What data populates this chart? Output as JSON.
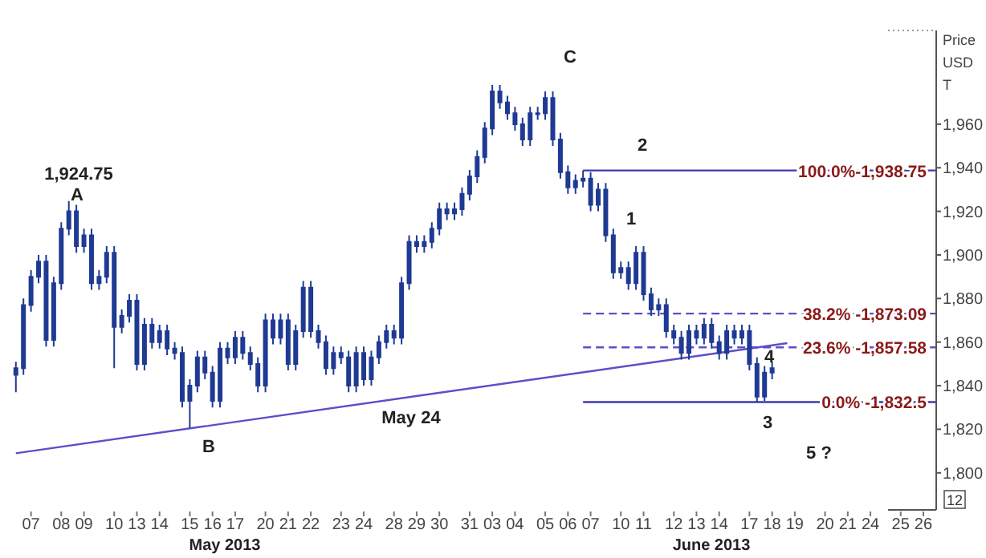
{
  "chart_data": {
    "type": "candlestick",
    "ylabel": "Price USD T",
    "grid": false,
    "categories": [
      null,
      null,
      "07",
      null,
      null,
      null,
      "08",
      null,
      null,
      "09",
      null,
      null,
      null,
      "10",
      null,
      null,
      "13",
      null,
      null,
      "14",
      null,
      null,
      null,
      "15",
      null,
      null,
      "16",
      null,
      null,
      "17",
      null,
      null,
      null,
      "20",
      null,
      null,
      "21",
      null,
      null,
      "22",
      null,
      null,
      null,
      "23",
      null,
      null,
      "24",
      null,
      null,
      null,
      "28",
      null,
      null,
      "29",
      null,
      null,
      "30",
      null,
      null,
      null,
      "31",
      null,
      null,
      "03",
      null,
      null,
      "04",
      null,
      null,
      null,
      "05",
      null,
      null,
      "06",
      null,
      null,
      "07",
      null,
      null,
      null,
      "10",
      null,
      null,
      "11",
      null,
      null,
      null,
      "12",
      null,
      null,
      "13",
      null,
      null,
      "14",
      null,
      null,
      null,
      "17",
      null,
      null,
      "18",
      null,
      null,
      "19",
      null,
      null,
      null,
      "20",
      null,
      null,
      "21",
      null,
      null,
      "24",
      null,
      null,
      null,
      "25",
      null,
      null,
      "26",
      null
    ],
    "ohlc": [
      [
        1845,
        1851,
        1837,
        1848
      ],
      [
        1848,
        1880,
        1845,
        1877
      ],
      [
        1877,
        1893,
        1874,
        1890
      ],
      [
        1890,
        1900,
        1887,
        1897
      ],
      [
        1897,
        1900,
        1858,
        1861
      ],
      [
        1861,
        1890,
        1858,
        1887
      ],
      [
        1887,
        1915,
        1884,
        1912
      ],
      [
        1912,
        1924.75,
        1909,
        1920
      ],
      [
        1920,
        1923,
        1901,
        1904
      ],
      [
        1904,
        1912,
        1901,
        1909
      ],
      [
        1909,
        1912,
        1884,
        1887
      ],
      [
        1887,
        1893,
        1884,
        1890
      ],
      [
        1890,
        1904,
        1887,
        1901
      ],
      [
        1901,
        1904,
        1848,
        1867
      ],
      [
        1867,
        1875,
        1864,
        1872
      ],
      [
        1872,
        1882,
        1869,
        1879
      ],
      [
        1879,
        1882,
        1847,
        1850
      ],
      [
        1850,
        1871,
        1847,
        1868
      ],
      [
        1868,
        1871,
        1857,
        1860
      ],
      [
        1860,
        1868,
        1857,
        1865
      ],
      [
        1865,
        1868,
        1854,
        1857
      ],
      [
        1857,
        1860,
        1852,
        1855
      ],
      [
        1855,
        1858,
        1830,
        1833
      ],
      [
        1833,
        1843,
        1820.5,
        1840
      ],
      [
        1840,
        1856,
        1837,
        1853
      ],
      [
        1853,
        1856,
        1843,
        1846
      ],
      [
        1846,
        1849,
        1830,
        1833
      ],
      [
        1833,
        1860,
        1830,
        1857
      ],
      [
        1857,
        1860,
        1850,
        1853
      ],
      [
        1853,
        1865,
        1850,
        1862
      ],
      [
        1862,
        1865,
        1852,
        1855
      ],
      [
        1855,
        1858,
        1847,
        1850
      ],
      [
        1850,
        1853,
        1837,
        1840
      ],
      [
        1840,
        1873,
        1837,
        1870
      ],
      [
        1870,
        1873,
        1859,
        1862
      ],
      [
        1862,
        1873,
        1859,
        1870
      ],
      [
        1870,
        1873,
        1847,
        1850
      ],
      [
        1850,
        1868,
        1847,
        1865
      ],
      [
        1865,
        1888,
        1862,
        1885
      ],
      [
        1885,
        1888,
        1862,
        1865
      ],
      [
        1865,
        1868,
        1857,
        1860
      ],
      [
        1860,
        1863,
        1845,
        1848
      ],
      [
        1848,
        1858,
        1845,
        1855
      ],
      [
        1855,
        1858,
        1850,
        1853
      ],
      [
        1853,
        1856,
        1837,
        1840
      ],
      [
        1840,
        1858,
        1837,
        1855
      ],
      [
        1855,
        1858,
        1840,
        1843
      ],
      [
        1843,
        1856,
        1840,
        1853
      ],
      [
        1853,
        1863,
        1850,
        1860
      ],
      [
        1860,
        1868,
        1857,
        1865
      ],
      [
        1865,
        1868,
        1859,
        1862
      ],
      [
        1862,
        1890,
        1859,
        1887
      ],
      [
        1887,
        1909,
        1884,
        1906
      ],
      [
        1906,
        1909,
        1901,
        1904
      ],
      [
        1904,
        1909,
        1901,
        1906
      ],
      [
        1906,
        1915,
        1903,
        1912
      ],
      [
        1912,
        1924,
        1909,
        1921
      ],
      [
        1921,
        1924,
        1916,
        1919
      ],
      [
        1919,
        1924,
        1916,
        1921
      ],
      [
        1921,
        1931,
        1918,
        1928
      ],
      [
        1928,
        1939,
        1925,
        1936
      ],
      [
        1936,
        1948,
        1933,
        1945
      ],
      [
        1945,
        1961,
        1942,
        1958
      ],
      [
        1958,
        1978,
        1955,
        1975
      ],
      [
        1975,
        1978,
        1967,
        1970
      ],
      [
        1970,
        1973,
        1962,
        1965
      ],
      [
        1965,
        1968,
        1957,
        1960
      ],
      [
        1960,
        1963,
        1950,
        1953
      ],
      [
        1953,
        1968,
        1950,
        1965
      ],
      [
        1965,
        1968,
        1962,
        1965
      ],
      [
        1965,
        1975,
        1962,
        1972
      ],
      [
        1972,
        1975,
        1950,
        1953
      ],
      [
        1953,
        1956,
        1935,
        1938
      ],
      [
        1938,
        1941,
        1928,
        1931
      ],
      [
        1931,
        1937,
        1928,
        1934
      ],
      [
        1934,
        1938.75,
        1931,
        1935
      ],
      [
        1935,
        1938,
        1920,
        1923
      ],
      [
        1923,
        1933,
        1920,
        1930
      ],
      [
        1930,
        1933,
        1906,
        1909
      ],
      [
        1909,
        1912,
        1889,
        1892
      ],
      [
        1892,
        1897,
        1889,
        1894
      ],
      [
        1894,
        1897,
        1884,
        1887
      ],
      [
        1887,
        1904,
        1884,
        1901
      ],
      [
        1901,
        1904,
        1879,
        1882
      ],
      [
        1882,
        1885,
        1872,
        1875
      ],
      [
        1875,
        1880,
        1872,
        1877
      ],
      [
        1877,
        1880,
        1862,
        1865
      ],
      [
        1865,
        1868,
        1859,
        1862
      ],
      [
        1862,
        1865,
        1852,
        1855
      ],
      [
        1855,
        1868,
        1852,
        1865
      ],
      [
        1865,
        1868,
        1859,
        1862
      ],
      [
        1862,
        1871,
        1859,
        1868
      ],
      [
        1868,
        1871,
        1857,
        1860
      ],
      [
        1860,
        1863,
        1852,
        1855
      ],
      [
        1855,
        1868,
        1852,
        1865
      ],
      [
        1865,
        1868,
        1859,
        1862
      ],
      [
        1862,
        1868,
        1859,
        1865
      ],
      [
        1865,
        1868,
        1847,
        1850
      ],
      [
        1850,
        1853,
        1832.5,
        1835
      ],
      [
        1835,
        1849,
        1833,
        1846
      ],
      [
        1846,
        1851,
        1843,
        1848
      ],
      null,
      null,
      null,
      null,
      null,
      null,
      null,
      null,
      null,
      null,
      null,
      null,
      null,
      null,
      null,
      null,
      null,
      null,
      null,
      null,
      null
    ],
    "color": "#1f3a93",
    "series": [
      {
        "type": "line",
        "color": "#5b4fc9",
        "line_style": "solid",
        "values": [
          1809,
          null,
          null,
          null,
          null,
          null,
          null,
          null,
          null,
          null,
          null,
          null,
          null,
          null,
          null,
          null,
          null,
          null,
          null,
          null,
          null,
          null,
          null,
          null,
          null,
          null,
          null,
          null,
          null,
          null,
          null,
          null,
          null,
          null,
          null,
          null,
          null,
          null,
          null,
          null,
          null,
          null,
          null,
          null,
          null,
          null,
          null,
          null,
          null,
          null,
          null,
          null,
          null,
          null,
          null,
          null,
          null,
          null,
          null,
          null,
          null,
          null,
          null,
          null,
          null,
          null,
          null,
          null,
          null,
          null,
          null,
          null,
          null,
          null,
          null,
          null,
          null,
          null,
          null,
          null,
          null,
          null,
          null,
          null,
          null,
          null,
          null,
          null,
          null,
          null,
          null,
          null,
          null,
          null,
          null,
          null,
          null,
          null,
          null,
          null,
          null,
          null,
          1859.5,
          null,
          null,
          null,
          null,
          null,
          null,
          null,
          null,
          null,
          null,
          null,
          null,
          null,
          null,
          null,
          null,
          null,
          null,
          null
        ]
      }
    ],
    "ref_lines": [
      {
        "axis": "y",
        "value": 1938.75,
        "color": "#3b3bb0",
        "line_style": "solid"
      },
      {
        "axis": "y",
        "value": 1873.09,
        "color": "#5b4fc9",
        "line_style": "dashed"
      },
      {
        "axis": "y",
        "value": 1857.58,
        "color": "#5b4fc9",
        "line_style": "dashed"
      },
      {
        "axis": "y",
        "value": 1832.5,
        "color": "#3b3bb0",
        "line_style": "solid"
      }
    ],
    "ylim": [
      1783,
      2003
    ],
    "yticks": [
      {
        "value": 1800,
        "label": "1,800"
      },
      {
        "value": 1820,
        "label": "1,820"
      },
      {
        "value": 1840,
        "label": "1,840"
      },
      {
        "value": 1860,
        "label": "1,860"
      },
      {
        "value": 1880,
        "label": "1,880"
      },
      {
        "value": 1900,
        "label": "1,900"
      },
      {
        "value": 1920,
        "label": "1,920"
      },
      {
        "value": 1940,
        "label": "1,940"
      },
      {
        "value": 1960,
        "label": "1,960"
      }
    ],
    "annotations": [
      "May 2013",
      "June 2013",
      "12",
      "1,924.75",
      "A",
      "B",
      "C",
      "1",
      "2",
      "3",
      "4",
      "5 ?",
      "May 24",
      "100.0%-1,938.75",
      "38.2% -1,873.09",
      "23.6% -1,857.58",
      "0.0% -1,832.5"
    ]
  }
}
